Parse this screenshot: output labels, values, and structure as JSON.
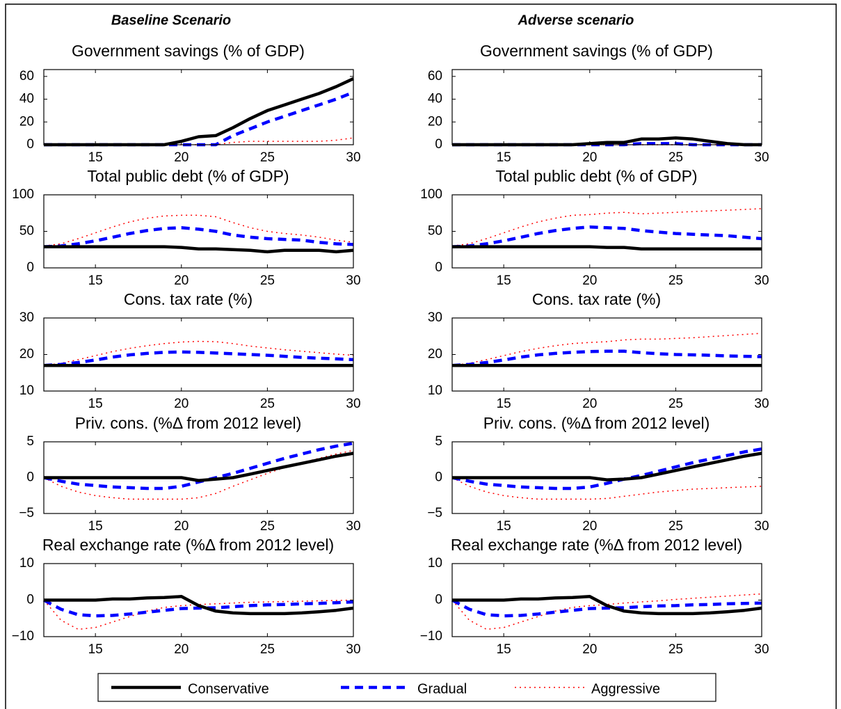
{
  "column_titles": [
    "Baseline Scenario",
    "Adverse scenario"
  ],
  "chart_data": [
    {
      "type": "line",
      "title": "Government savings (% of GDP)",
      "x": [
        12,
        13,
        14,
        15,
        16,
        17,
        18,
        19,
        20,
        21,
        22,
        23,
        24,
        25,
        26,
        27,
        28,
        29,
        30
      ],
      "xlim": [
        12,
        30
      ],
      "xticks": [
        15,
        20,
        25,
        30
      ],
      "ylim": [
        0,
        66
      ],
      "yticks": [
        0,
        20,
        40,
        60
      ],
      "series": [
        {
          "name": "Conservative",
          "color": "#000000",
          "style": "solid",
          "values": [
            0,
            0,
            0,
            0,
            0,
            0,
            0,
            0,
            3,
            7,
            8,
            15,
            23,
            30,
            35,
            40,
            45,
            51,
            58
          ]
        },
        {
          "name": "Gradual",
          "color": "#0000ff",
          "style": "dashed",
          "values": [
            0,
            0,
            0,
            0,
            0,
            0,
            0,
            0,
            0,
            0,
            0,
            8,
            14,
            20,
            25,
            30,
            35,
            40,
            46
          ]
        },
        {
          "name": "Aggressive",
          "color": "#ff0000",
          "style": "dotted",
          "values": [
            0,
            0,
            0,
            0,
            0,
            0,
            0,
            0,
            0,
            0,
            0,
            2,
            3,
            3,
            3,
            3,
            3,
            4,
            6
          ]
        }
      ]
    },
    {
      "type": "line",
      "title": "Government savings (% of GDP)",
      "x": [
        12,
        13,
        14,
        15,
        16,
        17,
        18,
        19,
        20,
        21,
        22,
        23,
        24,
        25,
        26,
        27,
        28,
        29,
        30
      ],
      "xlim": [
        12,
        30
      ],
      "xticks": [
        15,
        20,
        25,
        30
      ],
      "ylim": [
        0,
        66
      ],
      "yticks": [
        0,
        20,
        40,
        60
      ],
      "series": [
        {
          "name": "Conservative",
          "color": "#000000",
          "style": "solid",
          "values": [
            0,
            0,
            0,
            0,
            0,
            0,
            0,
            0,
            1,
            2,
            2,
            5,
            5,
            6,
            5,
            3,
            1,
            0,
            0
          ]
        },
        {
          "name": "Gradual",
          "color": "#0000ff",
          "style": "dashed",
          "values": [
            0,
            0,
            0,
            0,
            0,
            0,
            0,
            0,
            0,
            0,
            0,
            1,
            1,
            1,
            0,
            0,
            0,
            0,
            0
          ]
        },
        {
          "name": "Aggressive",
          "color": "#ff0000",
          "style": "dotted",
          "values": [
            0,
            0,
            0,
            0,
            0,
            0,
            0,
            0,
            0,
            0,
            0,
            0,
            0,
            0,
            0,
            0,
            0,
            0,
            0
          ]
        }
      ]
    },
    {
      "type": "line",
      "title": "Total public debt (% of GDP)",
      "x": [
        12,
        13,
        14,
        15,
        16,
        17,
        18,
        19,
        20,
        21,
        22,
        23,
        24,
        25,
        26,
        27,
        28,
        29,
        30
      ],
      "xlim": [
        12,
        30
      ],
      "xticks": [
        15,
        20,
        25,
        30
      ],
      "ylim": [
        0,
        100
      ],
      "yticks": [
        0,
        50,
        100
      ],
      "series": [
        {
          "name": "Conservative",
          "color": "#000000",
          "style": "solid",
          "values": [
            29,
            29,
            29,
            29,
            29,
            29,
            29,
            29,
            28,
            26,
            26,
            25,
            24,
            22,
            24,
            24,
            24,
            22,
            24
          ]
        },
        {
          "name": "Gradual",
          "color": "#0000ff",
          "style": "dashed",
          "values": [
            29,
            30,
            33,
            37,
            42,
            47,
            51,
            54,
            55,
            53,
            50,
            45,
            42,
            40,
            39,
            38,
            35,
            33,
            32
          ]
        },
        {
          "name": "Aggressive",
          "color": "#ff0000",
          "style": "dotted",
          "values": [
            30,
            33,
            40,
            48,
            56,
            63,
            68,
            71,
            72,
            72,
            70,
            62,
            55,
            50,
            47,
            45,
            42,
            38,
            35
          ]
        }
      ]
    },
    {
      "type": "line",
      "title": "Total public debt (% of GDP)",
      "x": [
        12,
        13,
        14,
        15,
        16,
        17,
        18,
        19,
        20,
        21,
        22,
        23,
        24,
        25,
        26,
        27,
        28,
        29,
        30
      ],
      "xlim": [
        12,
        30
      ],
      "xticks": [
        15,
        20,
        25,
        30
      ],
      "ylim": [
        0,
        100
      ],
      "yticks": [
        0,
        50,
        100
      ],
      "series": [
        {
          "name": "Conservative",
          "color": "#000000",
          "style": "solid",
          "values": [
            29,
            29,
            29,
            29,
            29,
            29,
            29,
            29,
            29,
            28,
            28,
            26,
            26,
            26,
            26,
            26,
            26,
            26,
            26
          ]
        },
        {
          "name": "Gradual",
          "color": "#0000ff",
          "style": "dashed",
          "values": [
            29,
            30,
            33,
            37,
            42,
            47,
            51,
            54,
            56,
            55,
            54,
            51,
            49,
            47,
            46,
            45,
            44,
            42,
            40
          ]
        },
        {
          "name": "Aggressive",
          "color": "#ff0000",
          "style": "dotted",
          "values": [
            30,
            33,
            40,
            48,
            56,
            63,
            68,
            72,
            73,
            75,
            76,
            74,
            75,
            76,
            77,
            78,
            79,
            80,
            81
          ]
        }
      ]
    },
    {
      "type": "line",
      "title": "Cons. tax rate (%)",
      "x": [
        12,
        13,
        14,
        15,
        16,
        17,
        18,
        19,
        20,
        21,
        22,
        23,
        24,
        25,
        26,
        27,
        28,
        29,
        30
      ],
      "xlim": [
        12,
        30
      ],
      "xticks": [
        15,
        20,
        25,
        30
      ],
      "ylim": [
        10,
        30
      ],
      "yticks": [
        10,
        20,
        30
      ],
      "series": [
        {
          "name": "Conservative",
          "color": "#000000",
          "style": "solid",
          "values": [
            17,
            17,
            17,
            17,
            17,
            17,
            17,
            17,
            17,
            17,
            17,
            17,
            17,
            17,
            17,
            17,
            17,
            17,
            17
          ]
        },
        {
          "name": "Gradual",
          "color": "#0000ff",
          "style": "dashed",
          "values": [
            17,
            17.3,
            17.8,
            18.5,
            19.3,
            19.9,
            20.3,
            20.6,
            20.7,
            20.6,
            20.4,
            20.2,
            20,
            19.8,
            19.5,
            19.2,
            19,
            18.8,
            18.6
          ]
        },
        {
          "name": "Aggressive",
          "color": "#ff0000",
          "style": "dotted",
          "values": [
            17,
            17.6,
            18.6,
            19.7,
            20.8,
            21.7,
            22.4,
            23,
            23.4,
            23.6,
            23.5,
            23,
            22.3,
            21.8,
            21.3,
            20.9,
            20.5,
            20.1,
            19.8
          ]
        }
      ]
    },
    {
      "type": "line",
      "title": "Cons. tax rate (%)",
      "x": [
        12,
        13,
        14,
        15,
        16,
        17,
        18,
        19,
        20,
        21,
        22,
        23,
        24,
        25,
        26,
        27,
        28,
        29,
        30
      ],
      "xlim": [
        12,
        30
      ],
      "xticks": [
        15,
        20,
        25,
        30
      ],
      "ylim": [
        10,
        30
      ],
      "yticks": [
        10,
        20,
        30
      ],
      "series": [
        {
          "name": "Conservative",
          "color": "#000000",
          "style": "solid",
          "values": [
            17,
            17,
            17,
            17,
            17,
            17,
            17,
            17,
            17,
            17,
            17,
            17,
            17,
            17,
            17,
            17,
            17,
            17,
            17
          ]
        },
        {
          "name": "Gradual",
          "color": "#0000ff",
          "style": "dashed",
          "values": [
            17,
            17.3,
            17.8,
            18.5,
            19.3,
            19.9,
            20.3,
            20.6,
            20.8,
            20.9,
            20.9,
            20.5,
            20.2,
            20,
            19.9,
            19.8,
            19.6,
            19.5,
            19.4
          ]
        },
        {
          "name": "Aggressive",
          "color": "#ff0000",
          "style": "dotted",
          "values": [
            17,
            17.6,
            18.6,
            19.7,
            20.8,
            21.7,
            22.4,
            23,
            23.3,
            23.5,
            24,
            24.2,
            24.2,
            24.4,
            24.6,
            24.9,
            25.2,
            25.5,
            25.8
          ]
        }
      ]
    },
    {
      "type": "line",
      "title": "Priv. cons. (%Δ from 2012 level)",
      "x": [
        12,
        13,
        14,
        15,
        16,
        17,
        18,
        19,
        20,
        21,
        22,
        23,
        24,
        25,
        26,
        27,
        28,
        29,
        30
      ],
      "xlim": [
        12,
        30
      ],
      "xticks": [
        15,
        20,
        25,
        30
      ],
      "ylim": [
        -5,
        5
      ],
      "yticks": [
        {
          "value": -5,
          "label": "−5"
        },
        0,
        5
      ],
      "series": [
        {
          "name": "Conservative",
          "color": "#000000",
          "style": "solid",
          "values": [
            0,
            0,
            0,
            0,
            0,
            0,
            0,
            0,
            0,
            -0.4,
            -0.2,
            0,
            0.5,
            1,
            1.5,
            2,
            2.5,
            3,
            3.4
          ]
        },
        {
          "name": "Gradual",
          "color": "#0000ff",
          "style": "dashed",
          "values": [
            0,
            -0.5,
            -0.9,
            -1.1,
            -1.3,
            -1.4,
            -1.5,
            -1.5,
            -1.2,
            -0.6,
            0,
            0.6,
            1.3,
            2,
            2.7,
            3.3,
            3.9,
            4.4,
            4.8
          ]
        },
        {
          "name": "Aggressive",
          "color": "#ff0000",
          "style": "dotted",
          "values": [
            0,
            -1.2,
            -2,
            -2.5,
            -2.8,
            -3,
            -3,
            -3,
            -3,
            -2.8,
            -2.2,
            -1.2,
            -0.3,
            0.6,
            1.4,
            2.1,
            2.7,
            3.3,
            3.8
          ]
        }
      ]
    },
    {
      "type": "line",
      "title": "Priv. cons. (%Δ from 2012 level)",
      "x": [
        12,
        13,
        14,
        15,
        16,
        17,
        18,
        19,
        20,
        21,
        22,
        23,
        24,
        25,
        26,
        27,
        28,
        29,
        30
      ],
      "xlim": [
        12,
        30
      ],
      "xticks": [
        15,
        20,
        25,
        30
      ],
      "ylim": [
        -5,
        5
      ],
      "yticks": [
        {
          "value": -5,
          "label": "−5"
        },
        0,
        5
      ],
      "series": [
        {
          "name": "Conservative",
          "color": "#000000",
          "style": "solid",
          "values": [
            0,
            0,
            0,
            0,
            0,
            0,
            0,
            0,
            0,
            -0.3,
            -0.2,
            0,
            0.5,
            1,
            1.5,
            2,
            2.5,
            3,
            3.4
          ]
        },
        {
          "name": "Gradual",
          "color": "#0000ff",
          "style": "dashed",
          "values": [
            0,
            -0.5,
            -0.9,
            -1.1,
            -1.3,
            -1.4,
            -1.5,
            -1.5,
            -1.3,
            -0.8,
            -0.2,
            0.3,
            0.9,
            1.5,
            2.1,
            2.6,
            3.1,
            3.6,
            4
          ]
        },
        {
          "name": "Aggressive",
          "color": "#ff0000",
          "style": "dotted",
          "values": [
            0,
            -1.2,
            -2,
            -2.5,
            -2.8,
            -3,
            -3,
            -3,
            -3,
            -2.9,
            -2.6,
            -2.3,
            -2,
            -1.8,
            -1.6,
            -1.5,
            -1.4,
            -1.3,
            -1.2
          ]
        }
      ]
    },
    {
      "type": "line",
      "title": "Real exchange rate (%Δ from 2012 level)",
      "x": [
        12,
        13,
        14,
        15,
        16,
        17,
        18,
        19,
        20,
        21,
        22,
        23,
        24,
        25,
        26,
        27,
        28,
        29,
        30
      ],
      "xlim": [
        12,
        30
      ],
      "xticks": [
        15,
        20,
        25,
        30
      ],
      "ylim": [
        -10,
        10
      ],
      "yticks": [
        {
          "value": -10,
          "label": "−10"
        },
        0,
        10
      ],
      "series": [
        {
          "name": "Conservative",
          "color": "#000000",
          "style": "solid",
          "values": [
            0,
            0,
            0,
            0,
            0.3,
            0.3,
            0.6,
            0.7,
            1,
            -1.5,
            -3,
            -3.5,
            -3.7,
            -3.7,
            -3.7,
            -3.5,
            -3.2,
            -2.8,
            -2.2
          ]
        },
        {
          "name": "Gradual",
          "color": "#0000ff",
          "style": "dashed",
          "values": [
            0,
            -2.5,
            -4,
            -4.3,
            -4.2,
            -3.8,
            -3.3,
            -2.8,
            -2.3,
            -2.2,
            -2.1,
            -1.8,
            -1.5,
            -1.3,
            -1.2,
            -1,
            -0.9,
            -0.7,
            -0.5
          ]
        },
        {
          "name": "Aggressive",
          "color": "#ff0000",
          "style": "dotted",
          "values": [
            0,
            -5.5,
            -8,
            -7.5,
            -6,
            -4.5,
            -3,
            -2,
            -1.5,
            -1.2,
            -1,
            -0.8,
            -0.6,
            -0.5,
            -0.4,
            -0.3,
            -0.2,
            -0.1,
            0
          ]
        }
      ]
    },
    {
      "type": "line",
      "title": "Real exchange rate (%Δ from 2012 level)",
      "x": [
        12,
        13,
        14,
        15,
        16,
        17,
        18,
        19,
        20,
        21,
        22,
        23,
        24,
        25,
        26,
        27,
        28,
        29,
        30
      ],
      "xlim": [
        12,
        30
      ],
      "xticks": [
        15,
        20,
        25,
        30
      ],
      "ylim": [
        -10,
        10
      ],
      "yticks": [
        {
          "value": -10,
          "label": "−10"
        },
        0,
        10
      ],
      "series": [
        {
          "name": "Conservative",
          "color": "#000000",
          "style": "solid",
          "values": [
            0,
            0,
            0,
            0,
            0.3,
            0.3,
            0.6,
            0.7,
            1,
            -1.5,
            -3,
            -3.5,
            -3.7,
            -3.7,
            -3.7,
            -3.5,
            -3.2,
            -2.8,
            -2.2
          ]
        },
        {
          "name": "Gradual",
          "color": "#0000ff",
          "style": "dashed",
          "values": [
            0,
            -2.5,
            -4,
            -4.3,
            -4.2,
            -3.8,
            -3.3,
            -2.8,
            -2.3,
            -2.2,
            -2.1,
            -1.8,
            -1.6,
            -1.5,
            -1.3,
            -1.2,
            -1,
            -0.9,
            -0.8
          ]
        },
        {
          "name": "Aggressive",
          "color": "#ff0000",
          "style": "dotted",
          "values": [
            0,
            -5.5,
            -8,
            -7.5,
            -6,
            -4.5,
            -3,
            -2,
            -1.5,
            -1.2,
            -0.8,
            -0.5,
            -0.2,
            0.2,
            0.5,
            0.8,
            1.1,
            1.4,
            1.7
          ]
        }
      ]
    }
  ]
}
